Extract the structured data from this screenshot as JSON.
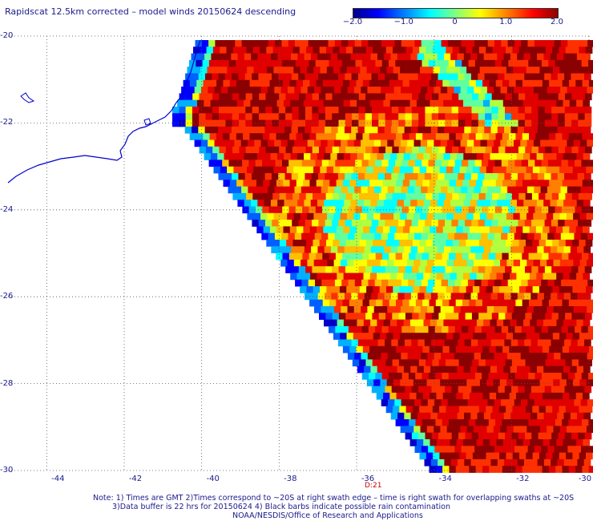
{
  "title": "Rapidscat 12.5km corrected – model winds 20150624 descending",
  "colorbar": {
    "ticks": [
      {
        "label": "−2.0",
        "value": -2.0
      },
      {
        "label": "−1.0",
        "value": -1.0
      },
      {
        "label": "0",
        "value": 0
      },
      {
        "label": "1.0",
        "value": 1.0
      },
      {
        "label": "2.0",
        "value": 2.0
      }
    ],
    "colors": [
      "#00008b",
      "#0000ff",
      "#0080ff",
      "#00ffff",
      "#80ff80",
      "#ffff00",
      "#ff8000",
      "#ff0000",
      "#8b0000"
    ]
  },
  "map": {
    "lon_range": [
      -45,
      -30
    ],
    "lat_range": [
      -30,
      -20
    ],
    "lat_ticks": [
      {
        "label": "-20",
        "value": -20
      },
      {
        "label": "-22",
        "value": -22
      },
      {
        "label": "-24",
        "value": -24
      },
      {
        "label": "-26",
        "value": -26
      },
      {
        "label": "-28",
        "value": -28
      },
      {
        "label": "-30",
        "value": -30
      }
    ],
    "lon_ticks": [
      {
        "label": "-44",
        "value": -44
      },
      {
        "label": "-42",
        "value": -42
      },
      {
        "label": "-40",
        "value": -40
      },
      {
        "label": "-38",
        "value": -38
      },
      {
        "label": "-36",
        "value": -36
      },
      {
        "label": "-34",
        "value": -34
      },
      {
        "label": "-32",
        "value": -32
      },
      {
        "label": "-30",
        "value": -30
      }
    ],
    "gridlines": true,
    "swath_time_label": "D:21"
  },
  "notes": {
    "line1": "Note: 1) Times are GMT 2)Times correspond to ~20S at right swath edge – time is right swath for overlapping swaths at ~20S",
    "line2": "3)Data buffer is 22 hrs for 20150624 4) Black barbs indicate possible rain contamination",
    "line3": "NOAA/NESDIS/Office of Research and Applications"
  }
}
